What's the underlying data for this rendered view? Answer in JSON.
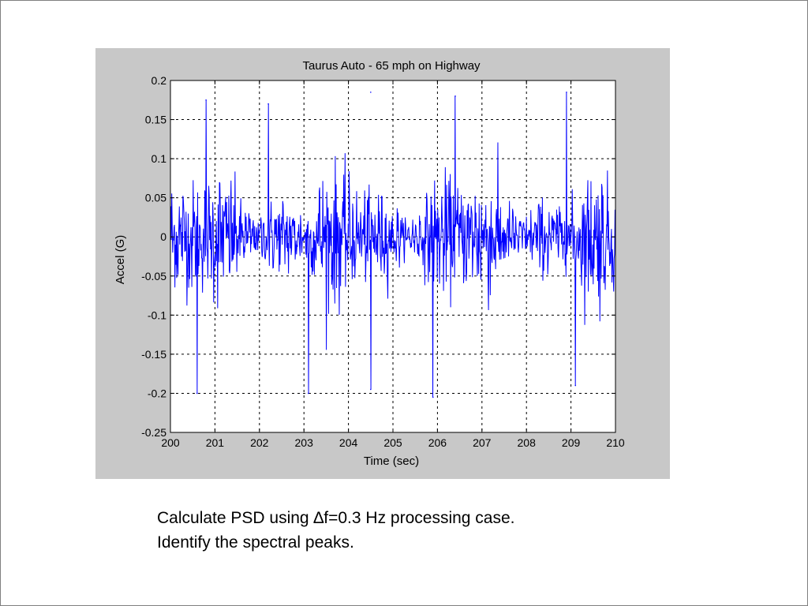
{
  "chart_data": {
    "type": "line",
    "title": "Taurus Auto - 65 mph on Highway",
    "xlabel": "Time (sec)",
    "ylabel": "Accel (G)",
    "xlim": [
      200,
      210
    ],
    "ylim": [
      -0.25,
      0.2
    ],
    "xticks": [
      200,
      201,
      202,
      203,
      204,
      205,
      206,
      207,
      208,
      209,
      210
    ],
    "yticks": [
      0.2,
      0.15,
      0.1,
      0.05,
      0,
      -0.05,
      -0.1,
      -0.15,
      -0.2,
      -0.25
    ],
    "xtick_labels": [
      "200",
      "201",
      "202",
      "203",
      "204",
      "205",
      "206",
      "207",
      "208",
      "209",
      "210"
    ],
    "ytick_labels": [
      "0.2",
      "0.15",
      "0.1",
      "0.05",
      "0",
      "-0.05",
      "-0.1",
      "-0.15",
      "-0.2",
      "-0.25"
    ],
    "grid": true,
    "grid_style": "dashed",
    "series": [
      {
        "name": "Accel",
        "color": "#0000ff",
        "description_stats": {
          "approx_range": [
            -0.205,
            0.185
          ],
          "sample_count": 1000
        }
      }
    ],
    "peak_annotations": [
      {
        "x": 200.6,
        "y": -0.2
      },
      {
        "x": 200.8,
        "y": 0.175
      },
      {
        "x": 202.2,
        "y": 0.17
      },
      {
        "x": 203.1,
        "y": -0.2
      },
      {
        "x": 204.5,
        "y": 0.185
      },
      {
        "x": 204.5,
        "y": -0.195
      },
      {
        "x": 205.9,
        "y": -0.205
      },
      {
        "x": 206.4,
        "y": 0.18
      },
      {
        "x": 208.9,
        "y": 0.185
      },
      {
        "x": 209.1,
        "y": -0.19
      }
    ]
  },
  "caption": {
    "line1": "Calculate PSD using ∆f=0.3 Hz processing case.",
    "line2": "Identify the spectral peaks."
  },
  "colors": {
    "figure_bg": "#c8c8c8",
    "plot_bg": "#ffffff",
    "trace": "#0000ff"
  }
}
